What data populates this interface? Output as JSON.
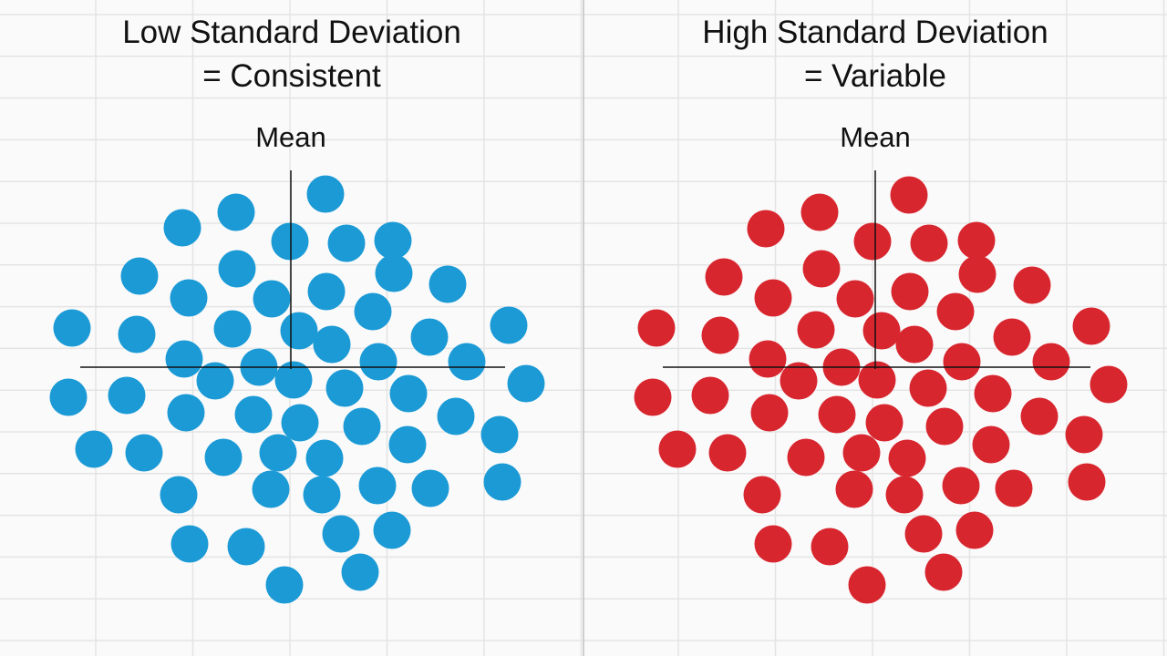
{
  "left_panel": {
    "title_line1": "Low Standard Deviation",
    "title_line2": "= Consistent",
    "mean_label": "Mean",
    "dot_color": "#1b9ad6"
  },
  "right_panel": {
    "title_line1": "High Standard Deviation",
    "title_line2": "= Variable",
    "mean_label": "Mean",
    "dot_color": "#d8262f"
  },
  "colors": {
    "background": "#fafafa",
    "grid": "#e4e4e4",
    "axis": "#111111"
  }
}
